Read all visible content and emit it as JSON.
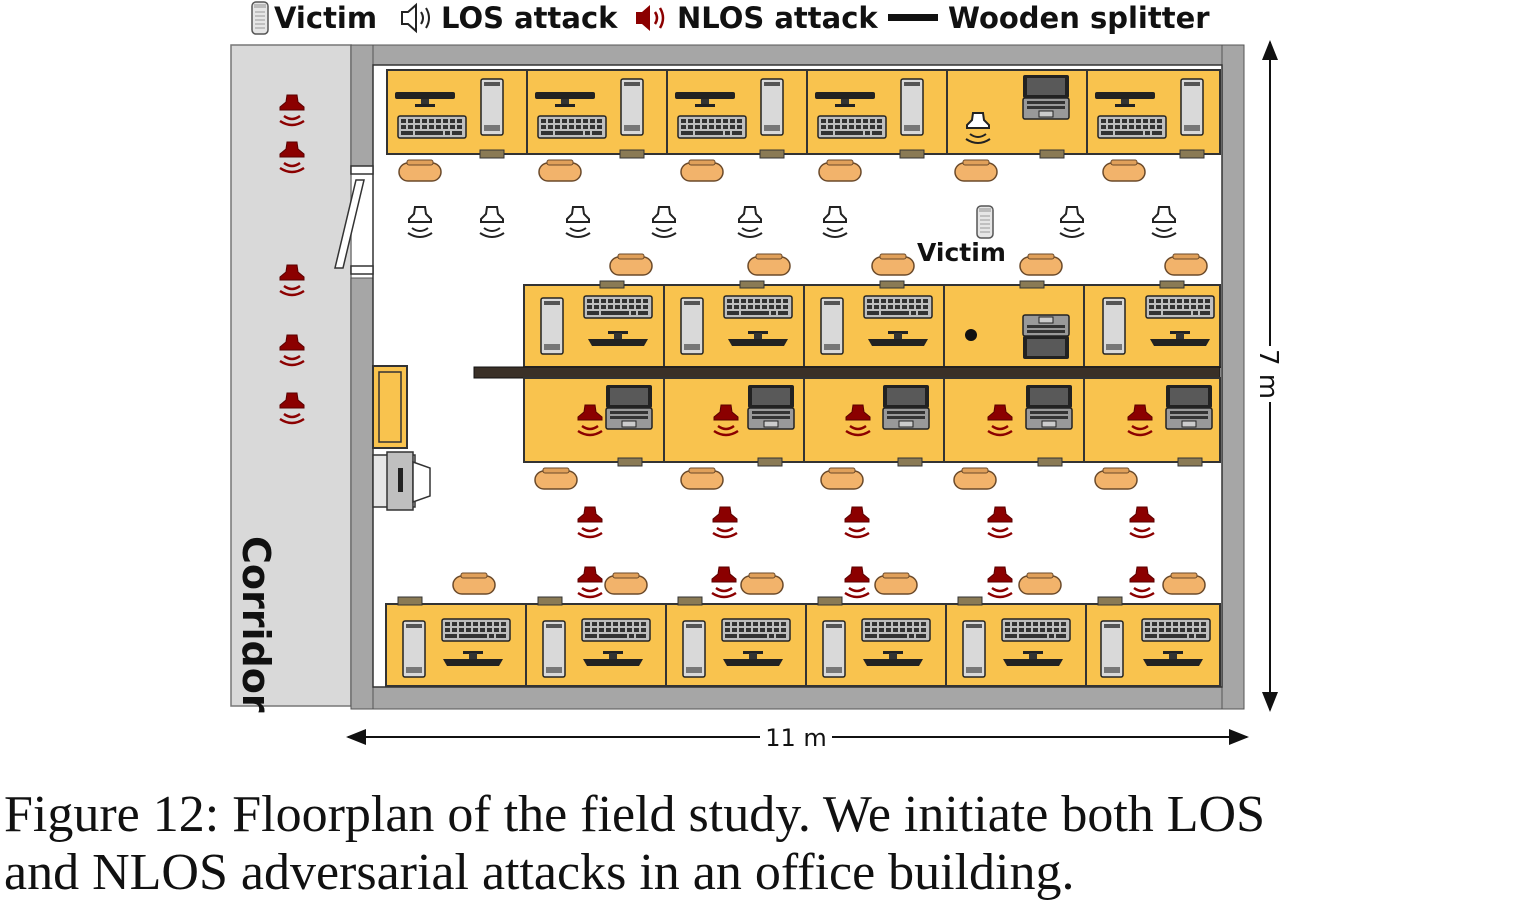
{
  "legend": {
    "victim": "Victim",
    "los": "LOS attack",
    "nlos": "NLOS attack",
    "splitter": "Wooden splitter"
  },
  "labels": {
    "corridor": "Corridor",
    "victim": "Victim",
    "width": "11 m",
    "height": "7 m"
  },
  "caption": {
    "line1": "Figure 12: Floorplan of the field study. We initiate both LOS",
    "line2": "and NLOS adversarial attacks in an office building."
  },
  "colors": {
    "desk": "#f9c34e",
    "wall": "#a6a6a6",
    "corridor": "#d9d9d9",
    "nlos": "#8b0000",
    "los": "#333333",
    "chair": "#f2b36b",
    "splitter": "#3a3027"
  }
}
